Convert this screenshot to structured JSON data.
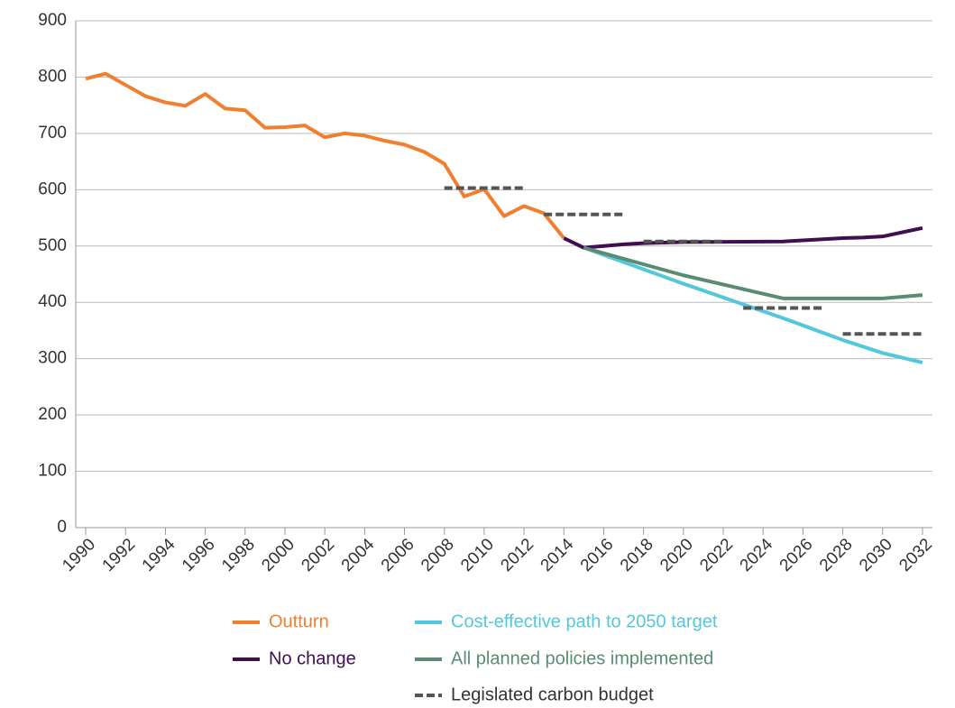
{
  "chart_data": {
    "type": "line",
    "xlim": [
      1989.5,
      2032.5
    ],
    "xticks": [
      1990,
      1992,
      1994,
      1996,
      1998,
      2000,
      2002,
      2004,
      2006,
      2008,
      2010,
      2012,
      2014,
      2016,
      2018,
      2020,
      2022,
      2024,
      2026,
      2028,
      2030,
      2032
    ],
    "ylim": [
      0,
      900
    ],
    "yticks": [
      0,
      100,
      200,
      300,
      400,
      500,
      600,
      700,
      800,
      900
    ],
    "grid": true,
    "series": [
      {
        "name": "Outturn",
        "color": "#f07f30",
        "x": [
          1990,
          1991,
          1992,
          1993,
          1994,
          1995,
          1996,
          1997,
          1998,
          1999,
          2000,
          2001,
          2002,
          2003,
          2004,
          2005,
          2006,
          2007,
          2008,
          2009,
          2010,
          2011,
          2012,
          2013,
          2014
        ],
        "values": [
          797,
          806,
          786,
          766,
          755,
          749,
          770,
          744,
          741,
          710,
          711,
          714,
          693,
          700,
          696,
          687,
          680,
          667,
          646,
          588,
          601,
          553,
          571,
          558,
          514
        ]
      },
      {
        "name": "No change",
        "color": "#3f0f4f",
        "x": [
          2014,
          2015,
          2016,
          2017,
          2018,
          2019,
          2020,
          2025,
          2026,
          2027,
          2028,
          2029,
          2030,
          2032
        ],
        "values": [
          514,
          497,
          500,
          503,
          505,
          506,
          507,
          508,
          510,
          512,
          514,
          515,
          517,
          532
        ]
      },
      {
        "name": "Cost-effective path to 2050 target",
        "color": "#52c8da",
        "x": [
          2015,
          2020,
          2025,
          2028,
          2030,
          2032
        ],
        "values": [
          497,
          433,
          372,
          333,
          310,
          293
        ]
      },
      {
        "name": "All planned policies implemented",
        "color": "#5a8c74",
        "x": [
          2015,
          2020,
          2025,
          2030,
          2032
        ],
        "values": [
          497,
          448,
          407,
          407,
          413
        ]
      }
    ],
    "budget": {
      "name": "Legislated carbon budget",
      "color": "#555555",
      "segments": [
        {
          "x": [
            2008,
            2012
          ],
          "value": 603
        },
        {
          "x": [
            2013,
            2017
          ],
          "value": 556
        },
        {
          "x": [
            2018,
            2022
          ],
          "value": 508
        },
        {
          "x": [
            2023,
            2027
          ],
          "value": 390
        },
        {
          "x": [
            2028,
            2032
          ],
          "value": 344
        }
      ]
    }
  }
}
